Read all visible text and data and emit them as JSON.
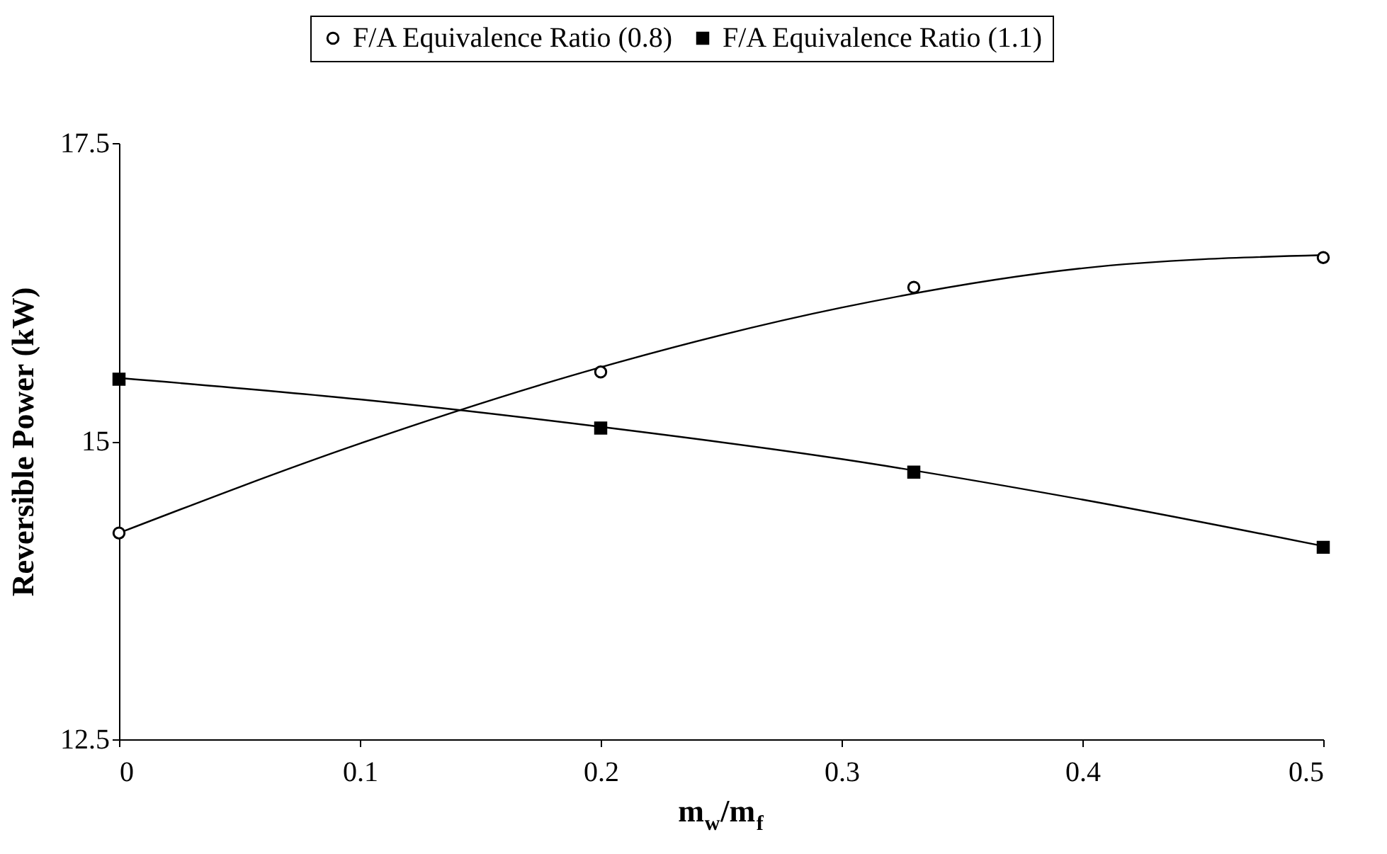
{
  "chart_data": {
    "type": "scatter",
    "xlabel": "m$_{w}$/m$_{f}$",
    "ylabel": "Reversible Power (kW)",
    "series": [
      {
        "name": "F/A Equivalence Ratio (0.8)",
        "color": "#000000",
        "marker": "circle",
        "x": [
          0,
          0.2,
          0.33,
          0.5
        ],
        "values": [
          14.23,
          15.58,
          16.29,
          16.54
        ]
      },
      {
        "name": "F/A Equivalence Ratio (1.1)",
        "color": "#000000",
        "marker": "square",
        "x": [
          0,
          0.2,
          0.33,
          0.5
        ],
        "values": [
          15.52,
          15.11,
          14.74,
          14.11
        ]
      },
      {
        "type": "line",
        "color": "#000000",
        "x": [
          0,
          0.1,
          0.2,
          0.3,
          0.4,
          0.5
        ],
        "values": [
          14.23,
          14.98,
          15.62,
          16.12,
          16.45,
          16.56
        ]
      },
      {
        "type": "line",
        "color": "#000000",
        "x": [
          0,
          0.1,
          0.2,
          0.3,
          0.4,
          0.5
        ],
        "values": [
          15.53,
          15.35,
          15.12,
          14.85,
          14.51,
          14.12
        ]
      }
    ],
    "xlim": [
      0,
      0.5
    ],
    "xticks": [
      0,
      0.1,
      0.2,
      0.3,
      0.4,
      0.5
    ],
    "ylim": [
      12.5,
      17.5
    ],
    "yticks": [
      12.5,
      15,
      17.5
    ],
    "grid": false,
    "legend": "top"
  }
}
